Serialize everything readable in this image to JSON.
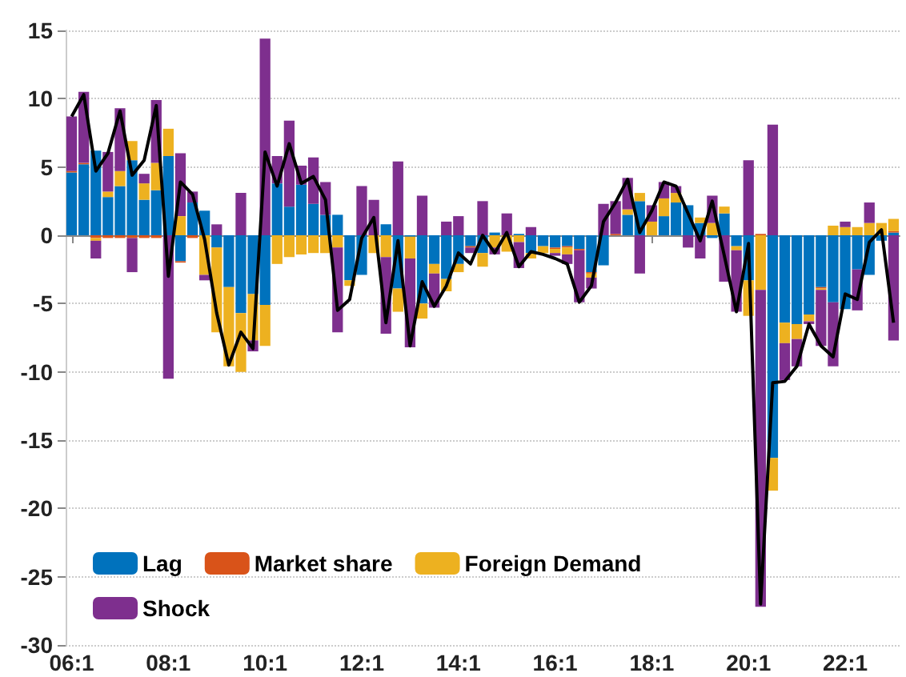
{
  "chart_data": {
    "type": "bar",
    "stacked": true,
    "categories": [
      "06:1",
      null,
      null,
      null,
      null,
      null,
      null,
      null,
      "08:1",
      null,
      null,
      null,
      null,
      null,
      null,
      null,
      "10:1",
      null,
      null,
      null,
      null,
      null,
      null,
      null,
      "12:1",
      null,
      null,
      null,
      null,
      null,
      null,
      null,
      "14:1",
      null,
      null,
      null,
      null,
      null,
      null,
      null,
      "16:1",
      null,
      null,
      null,
      null,
      null,
      null,
      null,
      "18:1",
      null,
      null,
      null,
      null,
      null,
      null,
      null,
      "20:1",
      null,
      null,
      null,
      null,
      null,
      null,
      null,
      "22:1",
      null,
      null,
      null,
      null
    ],
    "series": [
      {
        "name": "Lag",
        "color": "#0072bd",
        "values": [
          4.6,
          5.2,
          6.2,
          2.8,
          3.6,
          5.5,
          2.6,
          3.3,
          5.8,
          -1.9,
          2.4,
          1.8,
          -0.9,
          -3.8,
          -5.7,
          -4.3,
          -5.1,
          3.8,
          2.1,
          3.7,
          2.3,
          1.5,
          1.5,
          -3.3,
          -2.9,
          0,
          0.8,
          -3.9,
          -0.1,
          -5.0,
          -2.1,
          -3.2,
          -2.1,
          -0.8,
          -1.3,
          0.2,
          0,
          0.1,
          -1.3,
          -0.8,
          -0.9,
          -0.8,
          -1.0,
          -2.7,
          -2.2,
          0,
          1.5,
          2.5,
          0,
          1.4,
          2.4,
          2.2,
          0.9,
          -0.2,
          1.6,
          -0.8,
          -3.3,
          0,
          -16.3,
          -6.4,
          -6.5,
          -5.8,
          -3.8,
          -4.9,
          -5.4,
          -2.5,
          -2.9,
          -0.4,
          0.2
        ]
      },
      {
        "name": "Market share",
        "color": "#d95319",
        "values": [
          0.1,
          0.1,
          -0.2,
          -0.2,
          -0.2,
          -0.2,
          -0.2,
          -0.2,
          null,
          -0.1,
          -0.2,
          0,
          0,
          0,
          0,
          0,
          0,
          0,
          0,
          0,
          0,
          0,
          0,
          0,
          0,
          0,
          0,
          0,
          0,
          0,
          0,
          0,
          0,
          -0.1,
          0,
          0,
          null,
          0,
          0,
          0,
          -0.1,
          -0.1,
          -0.1,
          -0.1,
          0,
          0.1,
          0,
          0,
          0,
          0,
          0,
          null,
          0,
          0,
          0,
          0,
          0,
          0.1,
          0,
          0,
          0,
          0,
          -0.1,
          0,
          0,
          0,
          0,
          0,
          0.1
        ]
      },
      {
        "name": "Foreign Demand",
        "color": "#edb120",
        "values": [
          0,
          0,
          -0.2,
          0.4,
          1.1,
          1.4,
          1.2,
          2.0,
          2.0,
          1.4,
          0,
          -2.9,
          -6.2,
          -5.8,
          -4.3,
          -3.4,
          -3.0,
          -2.1,
          -1.6,
          -1.4,
          -1.3,
          -1.3,
          -0.9,
          -0.4,
          0,
          -1.3,
          -1.6,
          -1.7,
          -1.6,
          -1.1,
          -0.7,
          -0.9,
          -0.6,
          0,
          -1.0,
          -0.9,
          -1.2,
          -0.5,
          -0.4,
          -0.5,
          -0.3,
          -0.5,
          0,
          -0.3,
          0,
          0,
          0.4,
          0.6,
          1.0,
          1.3,
          0.7,
          0,
          0.4,
          0.9,
          0.5,
          -0.3,
          -2.6,
          -4.0,
          -2.4,
          -1.5,
          -1.1,
          -0.5,
          -0.1,
          0.7,
          0.6,
          0.6,
          0.9,
          0.9,
          0.9
        ]
      },
      {
        "name": "Shock",
        "color": "#7e2f8e",
        "values": [
          4.0,
          5.2,
          -1.3,
          2.9,
          4.6,
          -2.5,
          0.7,
          4.6,
          -10.5,
          4.6,
          0.8,
          -0.4,
          0.8,
          0,
          3.1,
          -0.8,
          14.4,
          2.0,
          6.3,
          1.4,
          3.4,
          2.4,
          -6.2,
          0,
          3.6,
          2.6,
          -5.6,
          5.4,
          -6.5,
          2.9,
          -2.5,
          1.0,
          1.4,
          -0.4,
          2.5,
          -0.5,
          1.6,
          -1.9,
          0.6,
          0,
          -0.2,
          -0.7,
          -3.8,
          -0.8,
          2.3,
          2.4,
          2.3,
          -2.8,
          1.2,
          1.2,
          0.5,
          -0.9,
          -1.7,
          2.0,
          -3.4,
          -4.5,
          5.5,
          -23.2,
          8.1,
          -2.7,
          -2.0,
          -0.2,
          -4.1,
          -4.7,
          0.4,
          -3.0,
          1.5,
          0,
          -7.7
        ]
      },
      {
        "type": "line",
        "color": "#000000",
        "values": [
          8.7,
          10.3,
          4.7,
          6.0,
          9.1,
          4.4,
          5.5,
          9.5,
          -3.0,
          3.9,
          3.0,
          -0.3,
          -5.7,
          -9.5,
          -7.1,
          -8.3,
          6.1,
          3.6,
          6.7,
          3.8,
          4.3,
          2.6,
          -5.5,
          -4.7,
          -0.2,
          1.3,
          -6.4,
          -0.4,
          -8.1,
          -3.4,
          -5.2,
          -3.7,
          -1.3,
          -2.1,
          0.0,
          -1.3,
          0.2,
          -2.3,
          -1.2,
          -1.4,
          -1.7,
          -2.1,
          -4.9,
          -3.7,
          1.0,
          2.4,
          4.1,
          0.2,
          1.8,
          3.9,
          3.6,
          1.6,
          -0.4,
          2.5,
          -1.5,
          -5.6,
          -0.6,
          -27.0,
          -10.8,
          -10.7,
          -9.6,
          -6.5,
          -8.1,
          -8.9,
          -4.3,
          -4.7,
          -0.5,
          0.4,
          -6.4
        ]
      }
    ],
    "ylim": [
      -30,
      15
    ],
    "yticks": [
      -30,
      -25,
      -20,
      -15,
      -10,
      -5,
      0,
      5,
      10,
      15
    ],
    "grid": "y",
    "legend": "bottom left"
  }
}
